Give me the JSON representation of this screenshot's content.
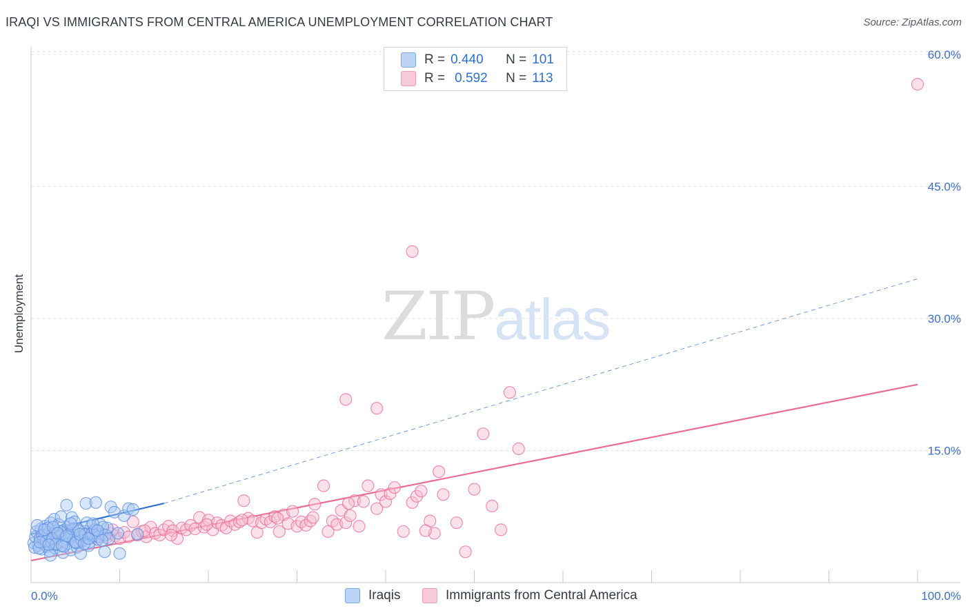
{
  "title": "IRAQI VS IMMIGRANTS FROM CENTRAL AMERICA UNEMPLOYMENT CORRELATION CHART",
  "source": "Source: ZipAtlas.com",
  "watermark": {
    "zip": "ZIP",
    "atlas": "atlas"
  },
  "legend_top": {
    "rows": [
      {
        "r_label": "R =",
        "r_value": "0.440",
        "n_label": "N =",
        "n_value": "101",
        "color": "#a9c8f5"
      },
      {
        "r_label": "R =",
        "r_value": "0.592",
        "n_label": "N =",
        "n_value": "113",
        "color": "#f7bcd0"
      }
    ]
  },
  "legend_bottom": [
    {
      "label": "Iraqis",
      "color": "#a9c8f5"
    },
    {
      "label": "Immigrants from Central America",
      "color": "#f7bcd0"
    }
  ],
  "chart_data": {
    "type": "scatter",
    "title": "IRAQI VS IMMIGRANTS FROM CENTRAL AMERICA UNEMPLOYMENT CORRELATION CHART",
    "xlabel": "",
    "ylabel": "Unemployment",
    "xlim": [
      0,
      100
    ],
    "ylim": [
      0,
      62
    ],
    "x_tick_labels": [
      "0.0%",
      "100.0%"
    ],
    "y_ticks": [
      15,
      30,
      45,
      60
    ],
    "y_tick_labels": [
      "15.0%",
      "30.0%",
      "45.0%",
      "60.0%"
    ],
    "grid": true,
    "series": [
      {
        "name": "Iraqis",
        "color": "#5b8fe0",
        "fill": "#a9c8f5",
        "R": 0.44,
        "N": 101,
        "trend_solid": [
          [
            0,
            5.5
          ],
          [
            15,
            9.0
          ]
        ],
        "trend_dashed": [
          [
            15,
            9.0
          ],
          [
            100,
            34.5
          ]
        ],
        "points": [
          [
            0.3,
            4.5
          ],
          [
            0.5,
            5.2
          ],
          [
            0.6,
            5.8
          ],
          [
            0.8,
            4.2
          ],
          [
            1.0,
            5.0
          ],
          [
            1.1,
            6.1
          ],
          [
            1.2,
            3.8
          ],
          [
            1.4,
            4.9
          ],
          [
            1.5,
            5.5
          ],
          [
            1.6,
            6.4
          ],
          [
            1.8,
            4.1
          ],
          [
            2.0,
            5.7
          ],
          [
            2.1,
            3.6
          ],
          [
            2.2,
            6.8
          ],
          [
            2.3,
            4.6
          ],
          [
            2.5,
            5.1
          ],
          [
            2.6,
            7.2
          ],
          [
            2.7,
            3.9
          ],
          [
            2.9,
            5.9
          ],
          [
            3.0,
            4.3
          ],
          [
            3.1,
            6.6
          ],
          [
            3.2,
            5.3
          ],
          [
            3.4,
            7.5
          ],
          [
            3.5,
            4.8
          ],
          [
            3.6,
            3.4
          ],
          [
            3.8,
            6.0
          ],
          [
            3.9,
            5.0
          ],
          [
            4.0,
            8.8
          ],
          [
            4.1,
            4.4
          ],
          [
            4.2,
            6.3
          ],
          [
            4.4,
            5.6
          ],
          [
            4.5,
            3.7
          ],
          [
            4.6,
            7.4
          ],
          [
            4.8,
            4.9
          ],
          [
            4.9,
            6.9
          ],
          [
            5.0,
            5.4
          ],
          [
            5.2,
            4.0
          ],
          [
            5.3,
            6.1
          ],
          [
            5.5,
            5.2
          ],
          [
            5.6,
            3.3
          ],
          [
            5.8,
            4.7
          ],
          [
            6.0,
            5.8
          ],
          [
            6.2,
            9.0
          ],
          [
            6.4,
            5.1
          ],
          [
            6.6,
            4.6
          ],
          [
            6.8,
            6.4
          ],
          [
            7.0,
            5.3
          ],
          [
            7.3,
            9.1
          ],
          [
            7.5,
            4.9
          ],
          [
            7.8,
            6.6
          ],
          [
            8.0,
            5.5
          ],
          [
            8.3,
            3.5
          ],
          [
            8.6,
            6.2
          ],
          [
            9.0,
            8.6
          ],
          [
            9.4,
            8.0
          ],
          [
            10.0,
            3.3
          ],
          [
            10.5,
            7.6
          ],
          [
            11.0,
            8.4
          ],
          [
            11.5,
            8.3
          ],
          [
            12.0,
            5.5
          ],
          [
            0.4,
            4.0
          ],
          [
            0.7,
            6.5
          ],
          [
            0.9,
            3.9
          ],
          [
            1.3,
            5.4
          ],
          [
            1.7,
            4.7
          ],
          [
            1.9,
            6.2
          ],
          [
            2.4,
            5.0
          ],
          [
            2.8,
            4.4
          ],
          [
            3.3,
            5.8
          ],
          [
            3.7,
            4.1
          ],
          [
            4.3,
            5.2
          ],
          [
            4.7,
            6.1
          ],
          [
            5.1,
            4.5
          ],
          [
            5.4,
            5.9
          ],
          [
            5.7,
            4.8
          ],
          [
            6.1,
            5.5
          ],
          [
            6.3,
            6.8
          ],
          [
            6.5,
            4.2
          ],
          [
            6.9,
            5.6
          ],
          [
            7.2,
            6.0
          ],
          [
            7.6,
            5.2
          ],
          [
            8.1,
            6.3
          ],
          [
            8.4,
            5.4
          ],
          [
            8.8,
            5.0
          ],
          [
            1.0,
            4.6
          ],
          [
            1.5,
            6.0
          ],
          [
            2.0,
            4.3
          ],
          [
            2.5,
            6.3
          ],
          [
            3.0,
            5.6
          ],
          [
            3.5,
            4.2
          ],
          [
            4.0,
            5.3
          ],
          [
            4.5,
            6.7
          ],
          [
            5.0,
            4.6
          ],
          [
            5.5,
            5.5
          ],
          [
            6.0,
            4.4
          ],
          [
            6.5,
            5.0
          ],
          [
            7.0,
            6.7
          ],
          [
            7.5,
            5.9
          ],
          [
            8.0,
            4.8
          ],
          [
            9.8,
            5.6
          ],
          [
            2.2,
            3.1
          ]
        ]
      },
      {
        "name": "Immigrants from Central America",
        "color": "#e86b96",
        "fill": "#f7bcd0",
        "R": 0.592,
        "N": 113,
        "trend_solid": [
          [
            0,
            2.5
          ],
          [
            100,
            22.5
          ]
        ],
        "points": [
          [
            1.0,
            5.0
          ],
          [
            1.5,
            4.4
          ],
          [
            2.0,
            5.6
          ],
          [
            2.5,
            4.8
          ],
          [
            3.0,
            5.3
          ],
          [
            3.5,
            4.6
          ],
          [
            4.0,
            5.9
          ],
          [
            4.5,
            5.1
          ],
          [
            5.0,
            4.7
          ],
          [
            5.5,
            5.4
          ],
          [
            6.0,
            5.0
          ],
          [
            6.5,
            5.8
          ],
          [
            7.0,
            5.2
          ],
          [
            7.5,
            4.9
          ],
          [
            8.0,
            5.5
          ],
          [
            8.5,
            5.1
          ],
          [
            9.0,
            5.6
          ],
          [
            9.5,
            5.3
          ],
          [
            10.0,
            5.0
          ],
          [
            10.5,
            5.7
          ],
          [
            11.0,
            5.2
          ],
          [
            11.5,
            6.9
          ],
          [
            12.0,
            5.4
          ],
          [
            12.5,
            5.8
          ],
          [
            13.0,
            5.2
          ],
          [
            13.5,
            6.3
          ],
          [
            14.0,
            5.6
          ],
          [
            14.5,
            5.4
          ],
          [
            15.0,
            6.0
          ],
          [
            15.5,
            6.4
          ],
          [
            16.0,
            5.9
          ],
          [
            16.5,
            5.0
          ],
          [
            17.0,
            6.2
          ],
          [
            17.5,
            6.0
          ],
          [
            18.0,
            6.5
          ],
          [
            18.5,
            6.1
          ],
          [
            19.0,
            7.4
          ],
          [
            19.5,
            6.3
          ],
          [
            20.0,
            7.1
          ],
          [
            20.5,
            6.0
          ],
          [
            21.0,
            6.8
          ],
          [
            21.5,
            6.5
          ],
          [
            22.0,
            6.2
          ],
          [
            22.5,
            7.0
          ],
          [
            23.0,
            6.6
          ],
          [
            23.5,
            6.9
          ],
          [
            24.0,
            9.3
          ],
          [
            24.5,
            7.3
          ],
          [
            25.0,
            7.0
          ],
          [
            25.5,
            5.7
          ],
          [
            26.0,
            6.8
          ],
          [
            26.5,
            7.2
          ],
          [
            27.0,
            6.9
          ],
          [
            27.5,
            7.5
          ],
          [
            28.0,
            5.8
          ],
          [
            28.5,
            7.7
          ],
          [
            29.0,
            6.7
          ],
          [
            29.5,
            8.1
          ],
          [
            30.0,
            6.4
          ],
          [
            30.5,
            6.9
          ],
          [
            31.0,
            6.5
          ],
          [
            31.5,
            7.0
          ],
          [
            32.0,
            8.9
          ],
          [
            33.0,
            11.0
          ],
          [
            33.5,
            5.8
          ],
          [
            34.0,
            7.0
          ],
          [
            34.5,
            6.6
          ],
          [
            35.0,
            8.2
          ],
          [
            35.5,
            6.8
          ],
          [
            36.0,
            7.6
          ],
          [
            36.5,
            9.3
          ],
          [
            37.0,
            6.4
          ],
          [
            37.5,
            9.2
          ],
          [
            38.0,
            11.0
          ],
          [
            39.0,
            8.4
          ],
          [
            39.5,
            10.0
          ],
          [
            40.0,
            9.2
          ],
          [
            40.5,
            10.1
          ],
          [
            41.0,
            10.8
          ],
          [
            42.0,
            5.8
          ],
          [
            43.0,
            9.1
          ],
          [
            43.5,
            9.8
          ],
          [
            44.0,
            10.4
          ],
          [
            45.0,
            7.0
          ],
          [
            45.5,
            5.6
          ],
          [
            46.0,
            12.6
          ],
          [
            46.5,
            10.0
          ],
          [
            48.0,
            6.8
          ],
          [
            49.0,
            3.5
          ],
          [
            50.0,
            10.6
          ],
          [
            51.0,
            16.9
          ],
          [
            52.0,
            8.7
          ],
          [
            53.0,
            6.0
          ],
          [
            54.0,
            21.6
          ],
          [
            55.0,
            15.2
          ],
          [
            39.0,
            19.8
          ],
          [
            43.0,
            37.6
          ],
          [
            35.5,
            20.8
          ],
          [
            100.0,
            56.6
          ],
          [
            2.2,
            4.9
          ],
          [
            3.8,
            5.6
          ],
          [
            6.2,
            5.3
          ],
          [
            9.2,
            6.0
          ],
          [
            12.8,
            5.9
          ],
          [
            15.8,
            5.4
          ],
          [
            19.8,
            6.6
          ],
          [
            23.8,
            7.1
          ],
          [
            27.8,
            7.3
          ],
          [
            31.8,
            7.4
          ],
          [
            35.8,
            9.0
          ],
          [
            1.2,
            5.5
          ],
          [
            44.5,
            5.9
          ]
        ]
      }
    ]
  }
}
